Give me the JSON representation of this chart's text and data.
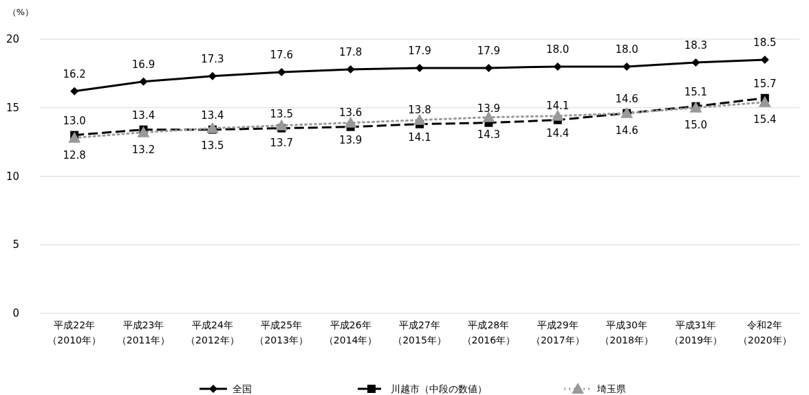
{
  "chart_data": {
    "type": "line",
    "ylabel": "（%）",
    "categories": [
      "平成22年（2010年）",
      "平成23年（2011年）",
      "平成24年（2012年）",
      "平成25年（2013年）",
      "平成26年（2014年）",
      "平成27年（2015年）",
      "平成28年（2016年）",
      "平成29年（2017年）",
      "平成30年（2018年）",
      "平成31年（2019年）",
      "令和2年（2020年）"
    ],
    "series": [
      {
        "name": "全国",
        "color": "#000000",
        "marker": "diamond",
        "line_style": "solid",
        "values": [
          16.2,
          16.9,
          17.3,
          17.6,
          17.8,
          17.9,
          17.9,
          18.0,
          18.0,
          18.3,
          18.5
        ],
        "value_labels": [
          "16.2",
          "16.9",
          "17.3",
          "17.6",
          "17.8",
          "17.9",
          "17.9",
          "18.0",
          "18.0",
          "18.3",
          "18.5"
        ]
      },
      {
        "name": "川越市（中段の数値）",
        "color": "#000000",
        "marker": "square",
        "line_style": "dashed",
        "values": [
          13.0,
          13.4,
          13.4,
          13.5,
          13.6,
          13.8,
          13.9,
          14.1,
          14.6,
          15.1,
          15.7
        ],
        "value_labels": [
          "13.0",
          "13.4",
          "13.4",
          "13.5",
          "13.6",
          "13.8",
          "13.9",
          "14.1",
          "14.6",
          "15.1",
          "15.7"
        ]
      },
      {
        "name": "埼玉県",
        "color": "#999999",
        "marker": "triangle",
        "line_style": "dotted",
        "values": [
          12.8,
          13.2,
          13.5,
          13.7,
          13.9,
          14.1,
          14.3,
          14.4,
          14.6,
          15.0,
          15.4
        ],
        "value_labels": [
          "12.8",
          "13.2",
          "13.5",
          "13.7",
          "13.9",
          "14.1",
          "14.3",
          "14.4",
          "14.6",
          "15.0",
          "15.4"
        ]
      }
    ],
    "ylim": [
      0,
      20
    ],
    "yticks": [
      0,
      5,
      10,
      15,
      20
    ],
    "grid": "y",
    "legend": "bottom"
  }
}
